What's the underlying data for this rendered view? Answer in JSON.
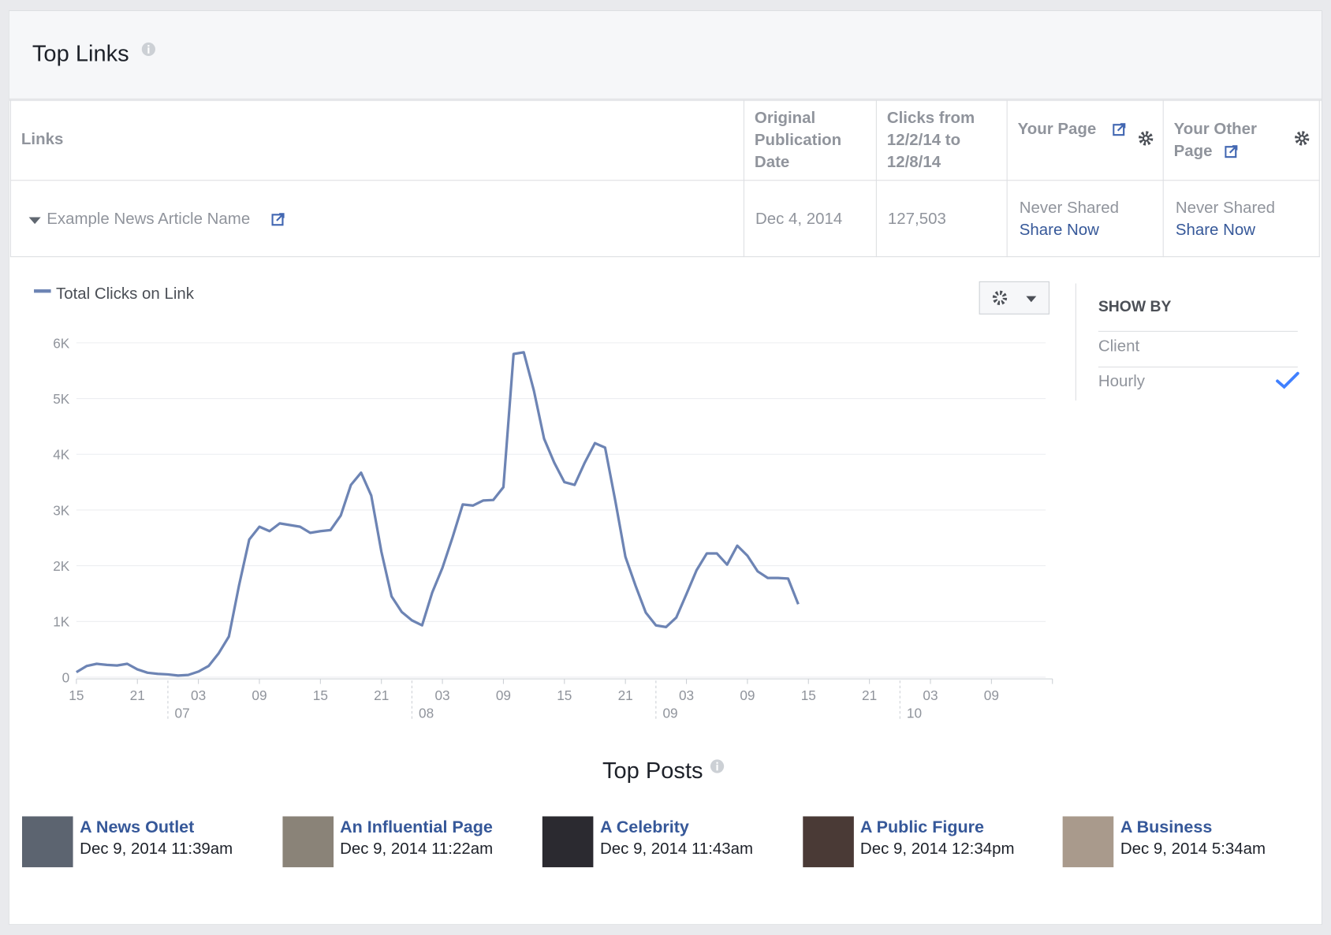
{
  "header": {
    "title": "Top Links"
  },
  "table": {
    "columns": [
      "Links",
      "Original Publication Date",
      "Clicks from 12/2/14 to 12/8/14",
      "Your Page",
      "Your Other Page"
    ],
    "rows": [
      {
        "link": "Example News Article Name",
        "date": "Dec 4, 2014",
        "clicks": "127,503",
        "your_page": {
          "status": "Never Shared",
          "action": "Share Now"
        },
        "other_page": {
          "status": "Never Shared",
          "action": "Share Now"
        }
      }
    ]
  },
  "chart_data": {
    "type": "line",
    "grid": true,
    "series": [
      {
        "name": "Total Clicks on Link",
        "color": "#6d84b4",
        "values": [
          90,
          200,
          240,
          220,
          210,
          240,
          140,
          80,
          60,
          50,
          30,
          40,
          100,
          200,
          430,
          730,
          1650,
          2470,
          2700,
          2620,
          2760,
          2730,
          2700,
          2590,
          2620,
          2640,
          2900,
          3450,
          3670,
          3260,
          2250,
          1450,
          1170,
          1020,
          930,
          1520,
          1960,
          2510,
          3100,
          3080,
          3170,
          3180,
          3410,
          5800,
          5830,
          5140,
          4280,
          3850,
          3500,
          3450,
          3850,
          4200,
          4120,
          3170,
          2160,
          1640,
          1160,
          930,
          900,
          1070,
          1490,
          1920,
          2220,
          2220,
          2020,
          2360,
          2180,
          1900,
          1780,
          1780,
          1770,
          1310
        ]
      }
    ],
    "x": [
      0,
      1,
      2,
      3,
      4,
      5,
      6,
      7,
      8,
      9,
      10,
      11,
      12,
      13,
      14,
      15,
      16,
      17,
      18,
      19,
      20,
      21,
      22,
      23,
      24,
      25,
      26,
      27,
      28,
      29,
      30,
      31,
      32,
      33,
      34,
      35,
      36,
      37,
      38,
      39,
      40,
      41,
      42,
      43,
      44,
      45,
      46,
      47,
      48,
      49,
      50,
      51,
      52,
      53,
      54,
      55,
      56,
      57,
      58,
      59,
      60,
      61,
      62,
      63,
      64,
      65,
      66,
      67,
      68,
      69,
      70,
      71
    ],
    "xlim": [
      0,
      96
    ],
    "xticks": [
      {
        "value": 0,
        "label": "15"
      },
      {
        "value": 6,
        "label": "21"
      },
      {
        "value": 12,
        "label": "03"
      },
      {
        "value": 18,
        "label": "09"
      },
      {
        "value": 24,
        "label": "15"
      },
      {
        "value": 30,
        "label": "21"
      },
      {
        "value": 36,
        "label": "03"
      },
      {
        "value": 42,
        "label": "09"
      },
      {
        "value": 48,
        "label": "15"
      },
      {
        "value": 54,
        "label": "21"
      },
      {
        "value": 60,
        "label": "03"
      },
      {
        "value": 66,
        "label": "09"
      },
      {
        "value": 72,
        "label": "15"
      },
      {
        "value": 78,
        "label": "21"
      },
      {
        "value": 84,
        "label": "03"
      },
      {
        "value": 90,
        "label": "09"
      }
    ],
    "day_ticks": [
      {
        "value": 9,
        "label": "07"
      },
      {
        "value": 33,
        "label": "08"
      },
      {
        "value": 57,
        "label": "09"
      },
      {
        "value": 81,
        "label": "10"
      }
    ],
    "ylim": [
      0,
      6000
    ],
    "yticks": [
      0,
      {
        "value": 1000,
        "label": "1K"
      },
      {
        "value": 2000,
        "label": "2K"
      },
      {
        "value": 3000,
        "label": "3K"
      },
      {
        "value": 4000,
        "label": "4K"
      },
      {
        "value": 5000,
        "label": "5K"
      },
      {
        "value": 6000,
        "label": "6K"
      }
    ]
  },
  "show_by": {
    "title": "SHOW BY",
    "options": [
      {
        "label": "Client",
        "checked": false
      },
      {
        "label": "Hourly",
        "checked": true
      }
    ]
  },
  "top_posts": {
    "title": "Top Posts",
    "items": [
      {
        "name": "A News Outlet",
        "time": "Dec 9, 2014 11:39am"
      },
      {
        "name": "An Influential Page",
        "time": "Dec 9, 2014 11:22am"
      },
      {
        "name": "A Celebrity",
        "time": "Dec 9, 2014 11:43am"
      },
      {
        "name": "A Public Figure",
        "time": "Dec 9, 2014 12:34pm"
      },
      {
        "name": "A Business",
        "time": "Dec 9, 2014 5:34am"
      }
    ]
  }
}
